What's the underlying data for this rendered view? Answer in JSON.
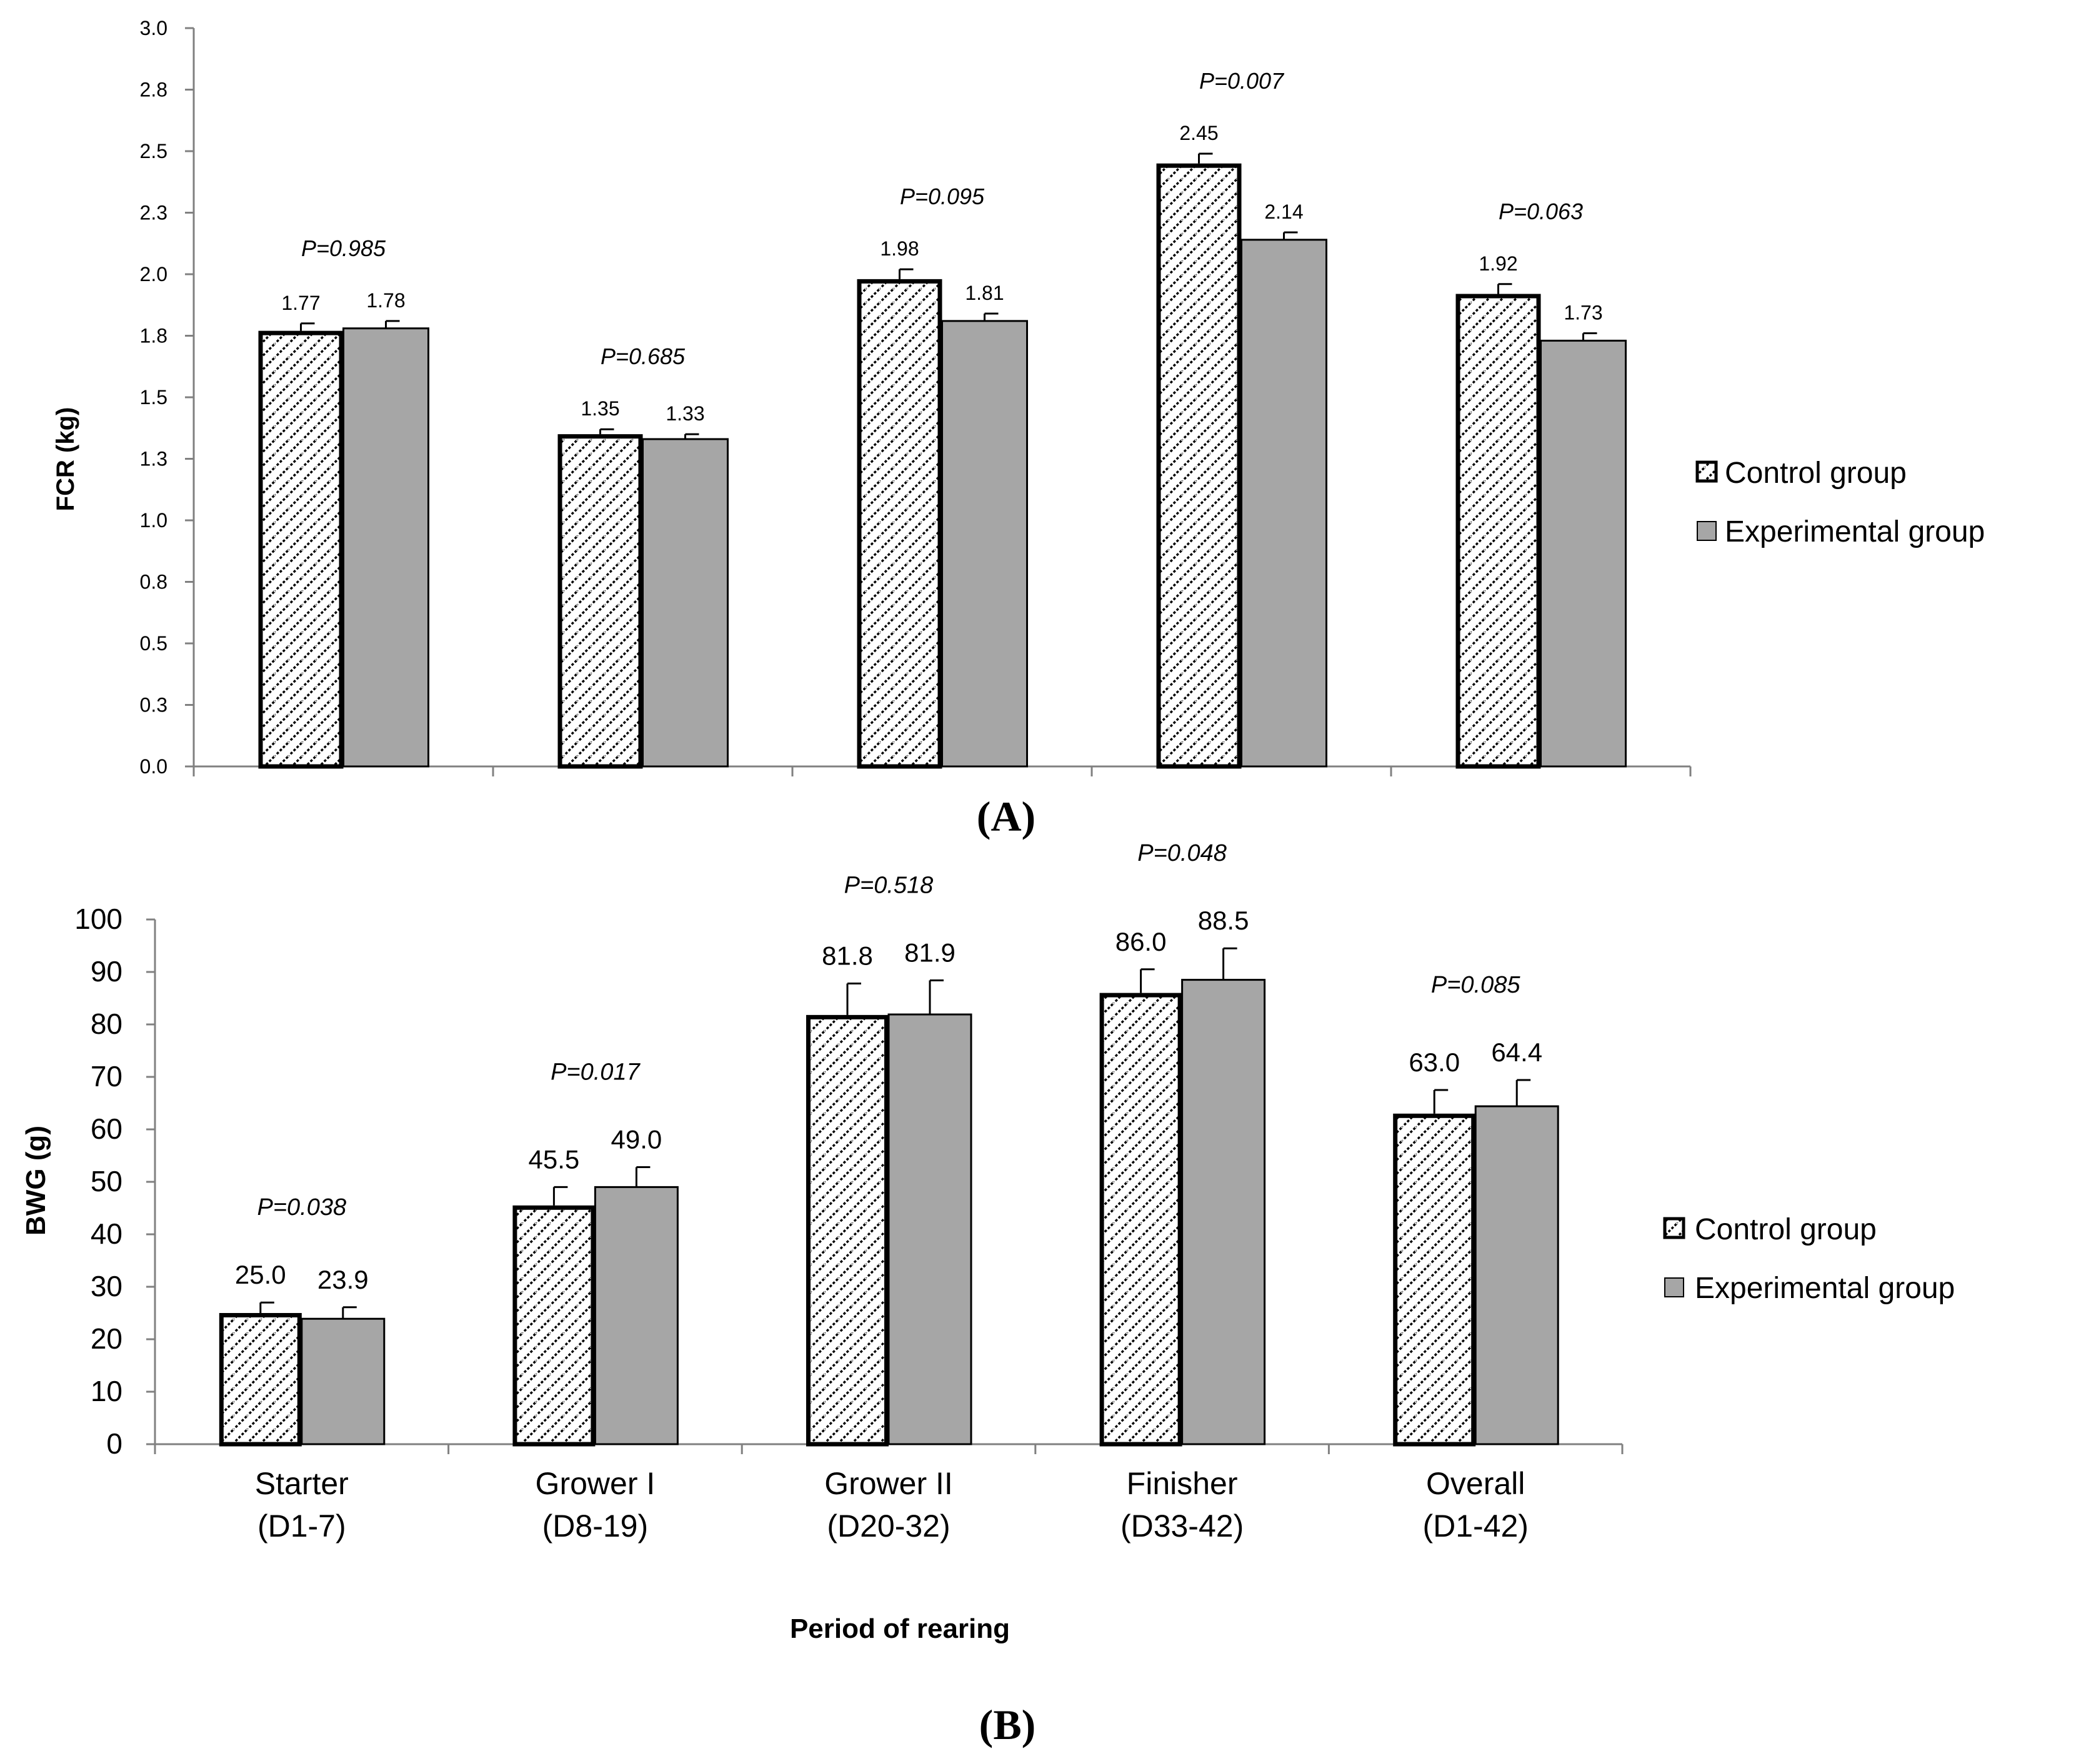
{
  "chart_data": [
    {
      "panel": "(A)",
      "type": "bar",
      "ylabel": "FCR (kg)",
      "ylim": [
        0,
        3.0
      ],
      "yticks": [
        "0.0",
        "0.3",
        "0.5",
        "0.8",
        "1.0",
        "1.3",
        "1.5",
        "1.8",
        "2.0",
        "2.3",
        "2.5",
        "2.8",
        "3.0"
      ],
      "categories": [
        "Starter (D1-7)",
        "Grower I (D8-19)",
        "Grower II (D20-32)",
        "Finisher (D33-42)",
        "Overall (D1-42)"
      ],
      "series": [
        {
          "name": "Control group",
          "values": [
            1.77,
            1.35,
            1.98,
            2.45,
            1.92
          ],
          "errors": [
            0.03,
            0.02,
            0.04,
            0.04,
            0.04
          ],
          "labels": [
            "1.77",
            "1.35",
            "1.98",
            "2.45",
            "1.92"
          ]
        },
        {
          "name": "Experimental group",
          "values": [
            1.78,
            1.33,
            1.81,
            2.14,
            1.73
          ],
          "errors": [
            0.03,
            0.02,
            0.03,
            0.03,
            0.03
          ],
          "labels": [
            "1.78",
            "1.33",
            "1.81",
            "2.14",
            "1.73"
          ]
        }
      ],
      "p_values": [
        "P=0.985",
        "P=0.685",
        "P=0.095",
        "P=0.007",
        "P=0.063"
      ],
      "grid": false,
      "legend_position": "right"
    },
    {
      "panel": "(B)",
      "type": "bar",
      "xlabel": "Period of rearing",
      "ylabel": "BWG (g)",
      "ylim": [
        0,
        100
      ],
      "yticks": [
        "0",
        "10",
        "20",
        "30",
        "40",
        "50",
        "60",
        "70",
        "80",
        "90",
        "100"
      ],
      "categories": [
        "Starter (D1-7)",
        "Grower I (D8-19)",
        "Grower II (D20-32)",
        "Finisher (D33-42)",
        "Overall (D1-42)"
      ],
      "category_lines": [
        [
          "Starter",
          "(D1-7)"
        ],
        [
          "Grower I",
          "(D8-19)"
        ],
        [
          "Grower II",
          "(D20-32)"
        ],
        [
          "Finisher",
          "(D33-42)"
        ],
        [
          "Overall",
          "(D1-42)"
        ]
      ],
      "series": [
        {
          "name": "Control group",
          "values": [
            25.0,
            45.5,
            81.8,
            86.0,
            63.0
          ],
          "errors": [
            2.0,
            3.5,
            6.0,
            4.5,
            4.5
          ],
          "labels": [
            "25.0",
            "45.5",
            "81.8",
            "86.0",
            "63.0"
          ]
        },
        {
          "name": "Experimental group",
          "values": [
            23.9,
            49.0,
            81.9,
            88.5,
            64.4
          ],
          "errors": [
            2.2,
            3.8,
            6.5,
            6.0,
            5.0
          ],
          "labels": [
            "23.9",
            "49.0",
            "81.9",
            "88.5",
            "64.4"
          ]
        }
      ],
      "p_values": [
        "P=0.038",
        "P=0.017",
        "P=0.518",
        "P=0.048",
        "P=0.085"
      ],
      "grid": false,
      "legend_position": "right"
    }
  ],
  "colors": {
    "control_fill": "#ffffff",
    "control_hatch": "#000000",
    "experimental_fill": "#a6a6a6",
    "axis": "#808080"
  }
}
